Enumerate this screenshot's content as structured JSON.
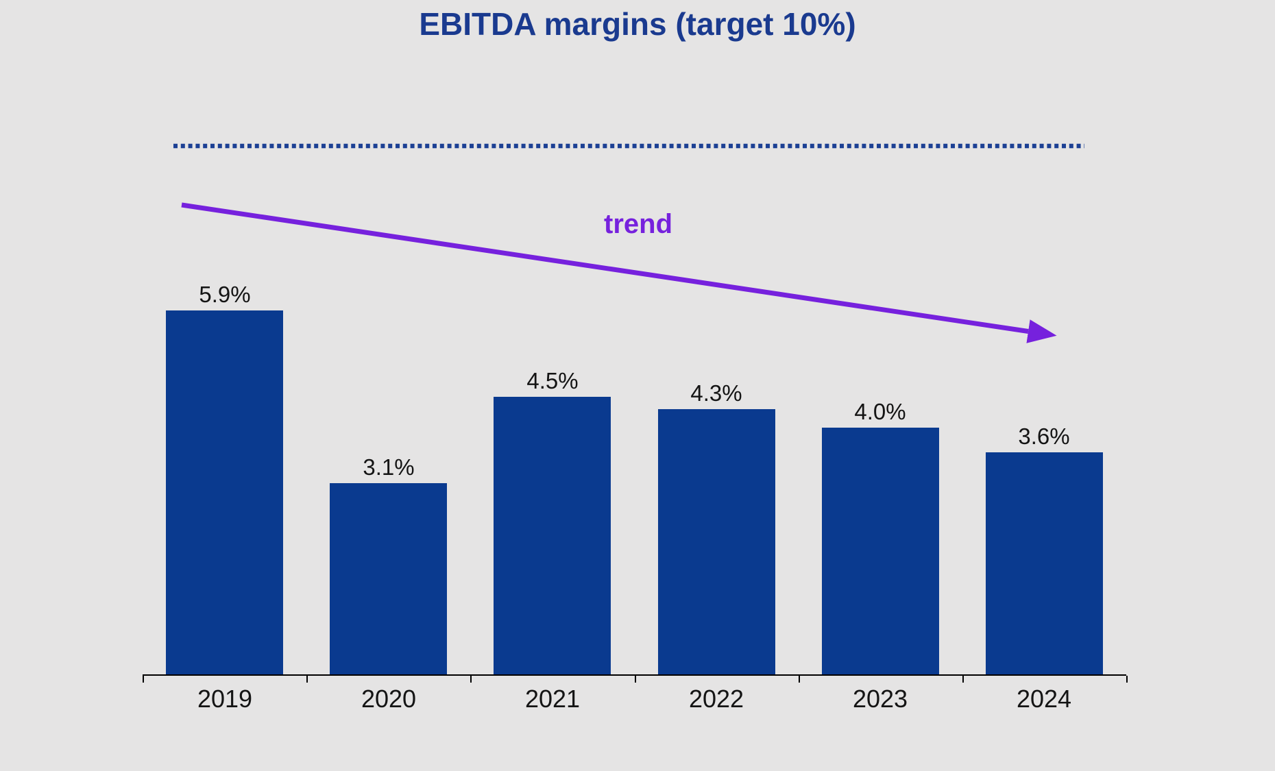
{
  "page": {
    "background_color": "#e5e4e4"
  },
  "title": {
    "text": "EBITDA margins (target 10%)",
    "color": "#1a3a8f"
  },
  "target_line": {
    "style": "dotted",
    "color": "#1c4094"
  },
  "trend": {
    "label": "trend",
    "color": "#7621dd"
  },
  "chart_data": {
    "type": "bar",
    "title": "EBITDA margins (target 10%)",
    "categories": [
      "2019",
      "2020",
      "2021",
      "2022",
      "2023",
      "2024"
    ],
    "values": [
      5.9,
      3.1,
      4.5,
      4.3,
      4.0,
      3.6
    ],
    "value_labels": [
      "5.9%",
      "3.1%",
      "4.5%",
      "4.3%",
      "4.0%",
      "3.6%"
    ],
    "target_value": 10,
    "annotations": [
      "trend"
    ],
    "bar_color": "#0a3a8f",
    "label_color": "#141414",
    "xlabel": "",
    "ylabel": "",
    "ylim": [
      0,
      11
    ],
    "grid": false,
    "legend": false
  }
}
